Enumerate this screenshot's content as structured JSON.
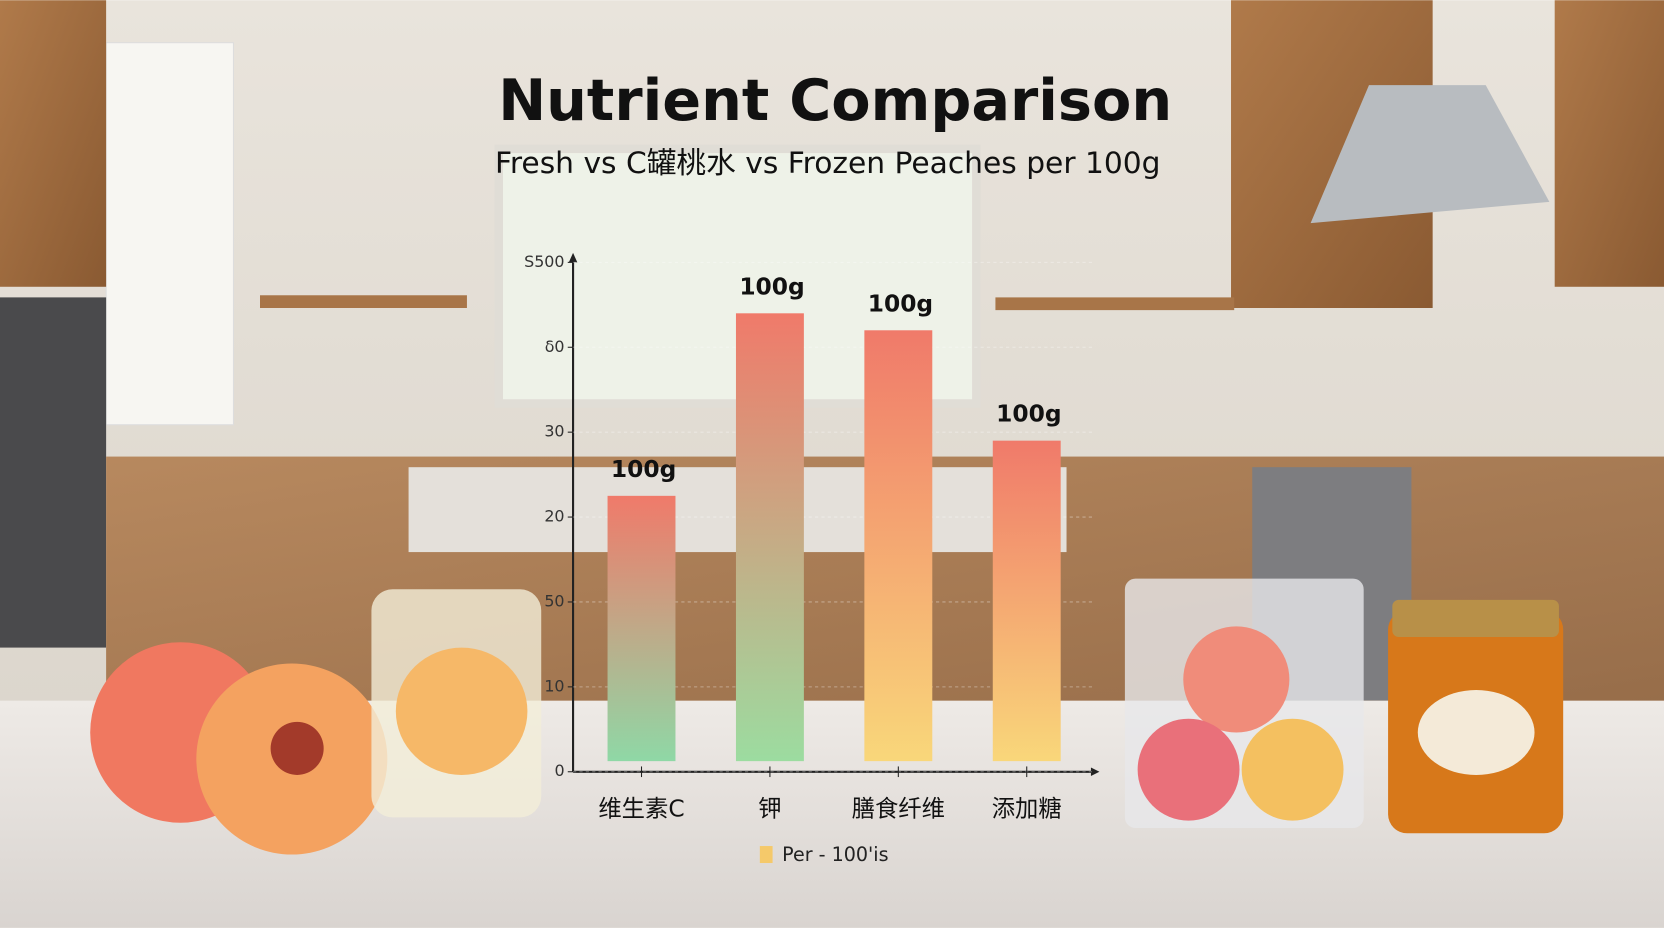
{
  "chart_data": {
    "type": "bar",
    "title": "Nutrient Comparison",
    "subtitle": "Fresh vs C罐桃水 vs Frozen Peaches per 100g",
    "categories": [
      "维生素C",
      "钾",
      "膳食纤维",
      "添加糖"
    ],
    "series": [
      {
        "name": "Per - 100'is",
        "color": "#f5c96a",
        "values": [
          32.5,
          54,
          52,
          39
        ]
      }
    ],
    "bar_gradients": [
      [
        "#f07a6a",
        "#8fd8a6"
      ],
      [
        "#f07a6a",
        "#9cdca0"
      ],
      [
        "#f07a6a",
        "#f9d77a"
      ],
      [
        "#f07a6a",
        "#f9d77a"
      ]
    ],
    "bar_labels": [
      "100g",
      "100g",
      "100g",
      "100g"
    ],
    "ylim": [
      0,
      60
    ],
    "yticks": [
      0,
      10,
      {
        "value": 20,
        "label": "50"
      },
      {
        "value": 30,
        "label": "20"
      },
      {
        "value": 40,
        "label": "30"
      },
      {
        "value": 50,
        "label": "δ0"
      },
      {
        "value": 60,
        "label": "S500"
      }
    ],
    "grid": true
  }
}
